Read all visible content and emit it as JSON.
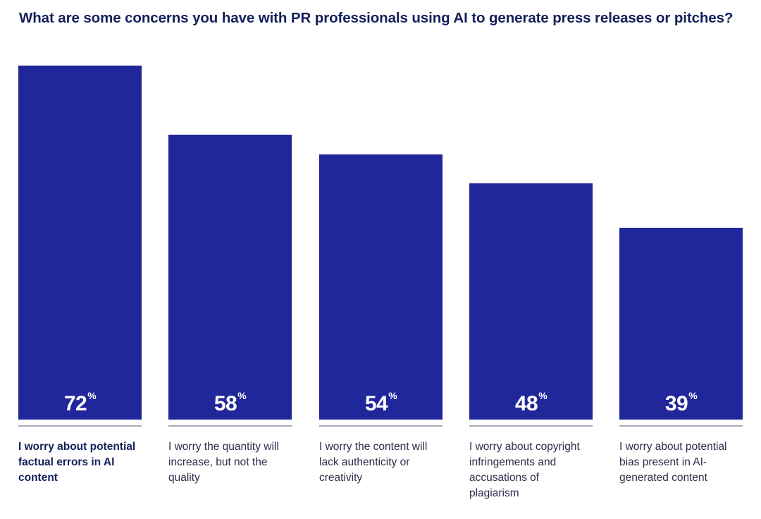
{
  "chart_data": {
    "type": "bar",
    "title": "What are some concerns you have with PR professionals using AI to generate press releases or pitches?",
    "xlabel": "",
    "ylabel": "",
    "ylim": [
      0,
      72
    ],
    "grid": false,
    "unit": "%",
    "categories": [
      "I worry about potential factual errors in AI content",
      "I worry the quantity will increase, but not the quality",
      "I worry the content will lack authenticity or creativity",
      "I worry about copyright infringements and accusations of plagiarism",
      "I worry about potential bias present in AI-generated content"
    ],
    "values": [
      72,
      58,
      54,
      48,
      39
    ],
    "value_labels": [
      "72",
      "58",
      "54",
      "48",
      "39"
    ],
    "bar_color": "#20279a"
  }
}
